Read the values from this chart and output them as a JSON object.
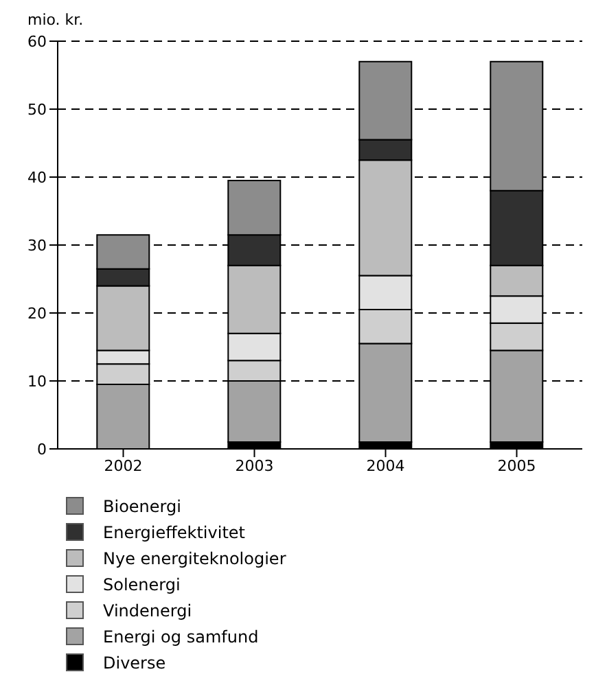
{
  "chart_data": {
    "type": "bar",
    "stacked": true,
    "ylabel": "mio. kr.",
    "categories": [
      "2002",
      "2003",
      "2004",
      "2005"
    ],
    "series": [
      {
        "name": "Diverse",
        "color": "#000000",
        "values": [
          0,
          1,
          1,
          1
        ]
      },
      {
        "name": "Energi og samfund",
        "color": "#a3a3a3",
        "values": [
          9.5,
          9,
          14.5,
          13.5
        ]
      },
      {
        "name": "Vindenergi",
        "color": "#cfcfcf",
        "values": [
          3,
          3,
          5,
          4
        ]
      },
      {
        "name": "Solenergi",
        "color": "#e2e2e2",
        "values": [
          2,
          4,
          5,
          4
        ]
      },
      {
        "name": "Nye energiteknologier",
        "color": "#bcbcbc",
        "values": [
          9.5,
          10,
          17,
          4.5
        ]
      },
      {
        "name": "Energieffektivitet",
        "color": "#303030",
        "values": [
          2.5,
          4.5,
          3,
          11
        ]
      },
      {
        "name": "Bioenergi",
        "color": "#8c8c8c",
        "values": [
          5,
          8,
          11.5,
          19
        ]
      }
    ],
    "ylim": [
      0,
      60
    ],
    "yticks": [
      0,
      10,
      20,
      30,
      40,
      50,
      60
    ],
    "grid": "y",
    "legend": "bottom"
  }
}
